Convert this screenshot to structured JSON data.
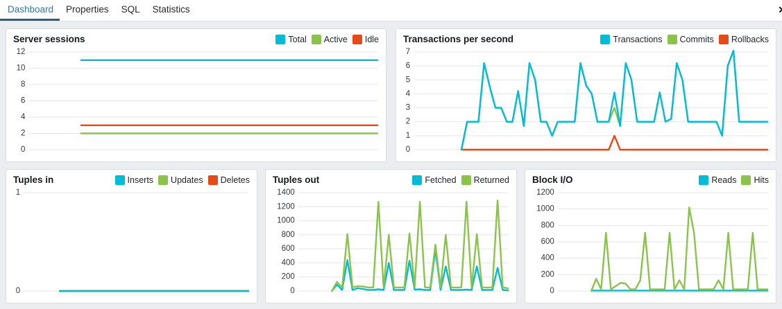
{
  "tab_bar": {
    "tabs": [
      {
        "label": "Dashboard",
        "active": true
      },
      {
        "label": "Properties",
        "active": false
      },
      {
        "label": "SQL",
        "active": false
      },
      {
        "label": "Statistics",
        "active": false
      }
    ],
    "close_glyph": "✕"
  },
  "colors": {
    "active_tab_text": "#2e77ad",
    "active_tab_underline": "#2c5f7d",
    "cyan": "#00bcd4",
    "green": "#8bc34a",
    "red": "#e64a19",
    "gridline": "#e2e4ed",
    "page_background": "#ebedf1",
    "panel_border": "#d9dce1"
  },
  "panels": [
    {
      "title": "Server sessions",
      "legend": [
        {
          "label": "Total",
          "color": "#00bcd4"
        },
        {
          "label": "Active",
          "color": "#8bc34a"
        },
        {
          "label": "Idle",
          "color": "#e64a19"
        }
      ],
      "chart_data": {
        "type": "line",
        "ylim": [
          0,
          12
        ],
        "yticks": [
          0,
          2,
          4,
          6,
          8,
          10,
          12
        ],
        "x_start": 0.15,
        "grid": true,
        "legend_position": "top-right",
        "series": [
          {
            "name": "Idle",
            "color": "#e64a19",
            "values": [
              3,
              3
            ]
          },
          {
            "name": "Active",
            "color": "#8bc34a",
            "values": [
              2,
              2
            ]
          },
          {
            "name": "Total",
            "color": "#00bcd4",
            "values": [
              11,
              11
            ]
          }
        ]
      }
    },
    {
      "title": "Transactions per second",
      "legend": [
        {
          "label": "Transactions",
          "color": "#00bcd4"
        },
        {
          "label": "Commits",
          "color": "#8bc34a"
        },
        {
          "label": "Rollbacks",
          "color": "#e64a19"
        }
      ],
      "chart_data": {
        "type": "line",
        "ylim": [
          0,
          7
        ],
        "yticks": [
          0,
          1,
          2,
          3,
          4,
          5,
          6,
          7
        ],
        "x_start": 0.135,
        "grid": true,
        "legend_position": "top-right",
        "series": [
          {
            "name": "Commits",
            "color": "#8bc34a",
            "values": [
              0,
              2,
              2,
              2,
              6.2,
              4.5,
              3,
              3,
              2,
              2,
              4.2,
              1.7,
              6.2,
              5,
              2,
              2,
              1,
              2,
              2,
              2,
              2,
              6.2,
              4.6,
              4,
              2,
              2,
              2,
              3,
              1.7,
              6.2,
              5,
              2,
              2,
              2,
              2,
              4.1,
              2,
              2.2,
              6.2,
              5,
              2,
              2,
              2,
              2,
              2,
              2,
              1,
              6,
              7.1,
              2,
              2,
              2,
              2,
              2,
              2
            ]
          },
          {
            "name": "Rollbacks",
            "color": "#e64a19",
            "values": [
              0,
              0,
              0,
              0,
              0,
              0,
              0,
              0,
              0,
              0,
              0,
              0,
              0,
              0,
              0,
              0,
              0,
              0,
              0,
              0,
              0,
              0,
              0,
              0,
              0,
              0,
              0,
              1,
              0,
              0,
              0,
              0,
              0,
              0,
              0,
              0,
              0,
              0,
              0,
              0,
              0,
              0,
              0,
              0,
              0,
              0,
              0,
              0,
              0,
              0,
              0,
              0,
              0,
              0,
              0
            ]
          },
          {
            "name": "Transactions",
            "color": "#00bcd4",
            "values": [
              0,
              2,
              2,
              2,
              6.2,
              4.5,
              3,
              3,
              2,
              2,
              4.2,
              1.7,
              6.2,
              5,
              2,
              2,
              1,
              2,
              2,
              2,
              2,
              6.2,
              4.6,
              4,
              2,
              2,
              2,
              4.1,
              1.7,
              6.2,
              5,
              2,
              2,
              2,
              2,
              4.1,
              2,
              2.2,
              6.2,
              5,
              2,
              2,
              2,
              2,
              2,
              2,
              1,
              6,
              7.1,
              2,
              2,
              2,
              2,
              2,
              2
            ]
          }
        ]
      }
    },
    {
      "title": "Tuples in",
      "legend": [
        {
          "label": "Inserts",
          "color": "#00bcd4"
        },
        {
          "label": "Updates",
          "color": "#8bc34a"
        },
        {
          "label": "Deletes",
          "color": "#e64a19"
        }
      ],
      "chart_data": {
        "type": "line",
        "ylim": [
          0,
          1
        ],
        "yticks": [
          0,
          1
        ],
        "x_start": 0.16,
        "grid": true,
        "legend_position": "top-right",
        "series": [
          {
            "name": "Deletes",
            "color": "#e64a19",
            "values": [
              0,
              0
            ]
          },
          {
            "name": "Updates",
            "color": "#8bc34a",
            "values": [
              0,
              0
            ]
          },
          {
            "name": "Inserts",
            "color": "#00bcd4",
            "values": [
              0,
              0
            ]
          }
        ]
      }
    },
    {
      "title": "Tuples out",
      "legend": [
        {
          "label": "Fetched",
          "color": "#00bcd4"
        },
        {
          "label": "Returned",
          "color": "#8bc34a"
        }
      ],
      "chart_data": {
        "type": "line",
        "ylim": [
          0,
          1400
        ],
        "yticks": [
          0,
          200,
          400,
          600,
          800,
          1000,
          1200,
          1400
        ],
        "x_start": 0.16,
        "grid": true,
        "legend_position": "top-right",
        "series": [
          {
            "name": "Fetched",
            "color": "#00bcd4",
            "values": [
              0,
              90,
              15,
              440,
              15,
              40,
              30,
              15,
              15,
              25,
              15,
              400,
              15,
              15,
              15,
              430,
              20,
              25,
              15,
              15,
              590,
              15,
              350,
              15,
              15,
              15,
              20,
              15,
              350,
              15,
              15,
              15,
              330,
              15,
              10
            ]
          },
          {
            "name": "Returned",
            "color": "#8bc34a",
            "values": [
              0,
              130,
              50,
              810,
              50,
              70,
              65,
              50,
              50,
              1270,
              50,
              800,
              50,
              50,
              50,
              820,
              60,
              1270,
              50,
              50,
              660,
              50,
              800,
              50,
              50,
              50,
              1270,
              50,
              810,
              50,
              50,
              50,
              1290,
              50,
              40
            ]
          }
        ]
      }
    },
    {
      "title": "Block I/O",
      "legend": [
        {
          "label": "Reads",
          "color": "#00bcd4"
        },
        {
          "label": "Hits",
          "color": "#8bc34a"
        }
      ],
      "chart_data": {
        "type": "line",
        "ylim": [
          0,
          1200
        ],
        "yticks": [
          0,
          200,
          400,
          600,
          800,
          1000,
          1200
        ],
        "x_start": 0.16,
        "grid": true,
        "legend_position": "top-right",
        "series": [
          {
            "name": "Reads",
            "color": "#00bcd4",
            "values": [
              5,
              5
            ]
          },
          {
            "name": "Hits",
            "color": "#8bc34a",
            "values": [
              0,
              150,
              20,
              710,
              20,
              60,
              100,
              90,
              20,
              20,
              130,
              710,
              20,
              20,
              20,
              20,
              710,
              20,
              130,
              20,
              1020,
              710,
              20,
              20,
              20,
              20,
              130,
              20,
              710,
              20,
              20,
              20,
              20,
              710,
              20,
              20,
              20
            ]
          }
        ]
      }
    }
  ]
}
